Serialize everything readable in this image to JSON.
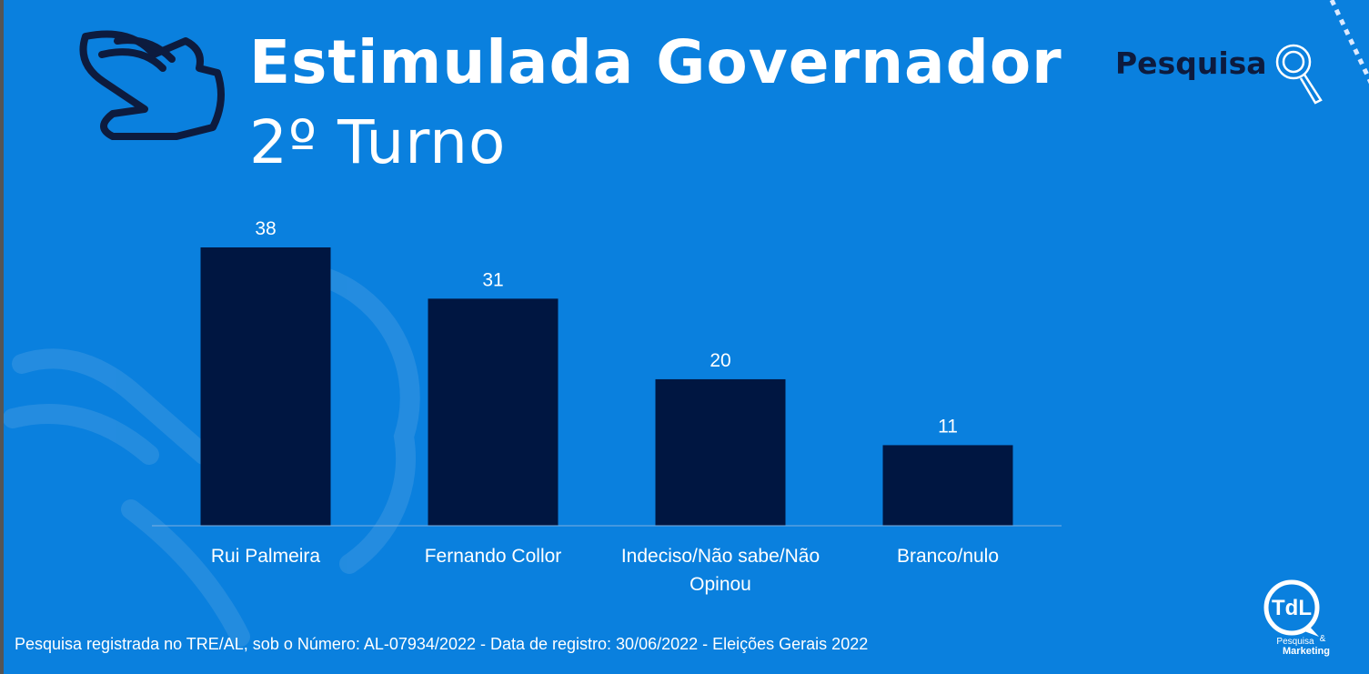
{
  "header": {
    "title": "Estimulada Governador",
    "subtitle": "2º Turno",
    "brand": "Pesquisa"
  },
  "chart_data": {
    "type": "bar",
    "categories": [
      "Rui Palmeira",
      "Fernando Collor",
      "Indeciso/Não sabe/Não Opinou",
      "Branco/nulo"
    ],
    "values": [
      38,
      31,
      20,
      11
    ],
    "color": "#001641",
    "ylim": [
      0,
      38
    ],
    "grid": false
  },
  "footer": {
    "note": "Pesquisa registrada no TRE/AL, sob o Número: AL-07934/2022 - Data de registro: 30/06/2022 - Eleições Gerais 2022"
  },
  "logo": {
    "mark": "TdL",
    "line1": "Pesquisa",
    "amp": "&",
    "line2": "Marketing"
  }
}
